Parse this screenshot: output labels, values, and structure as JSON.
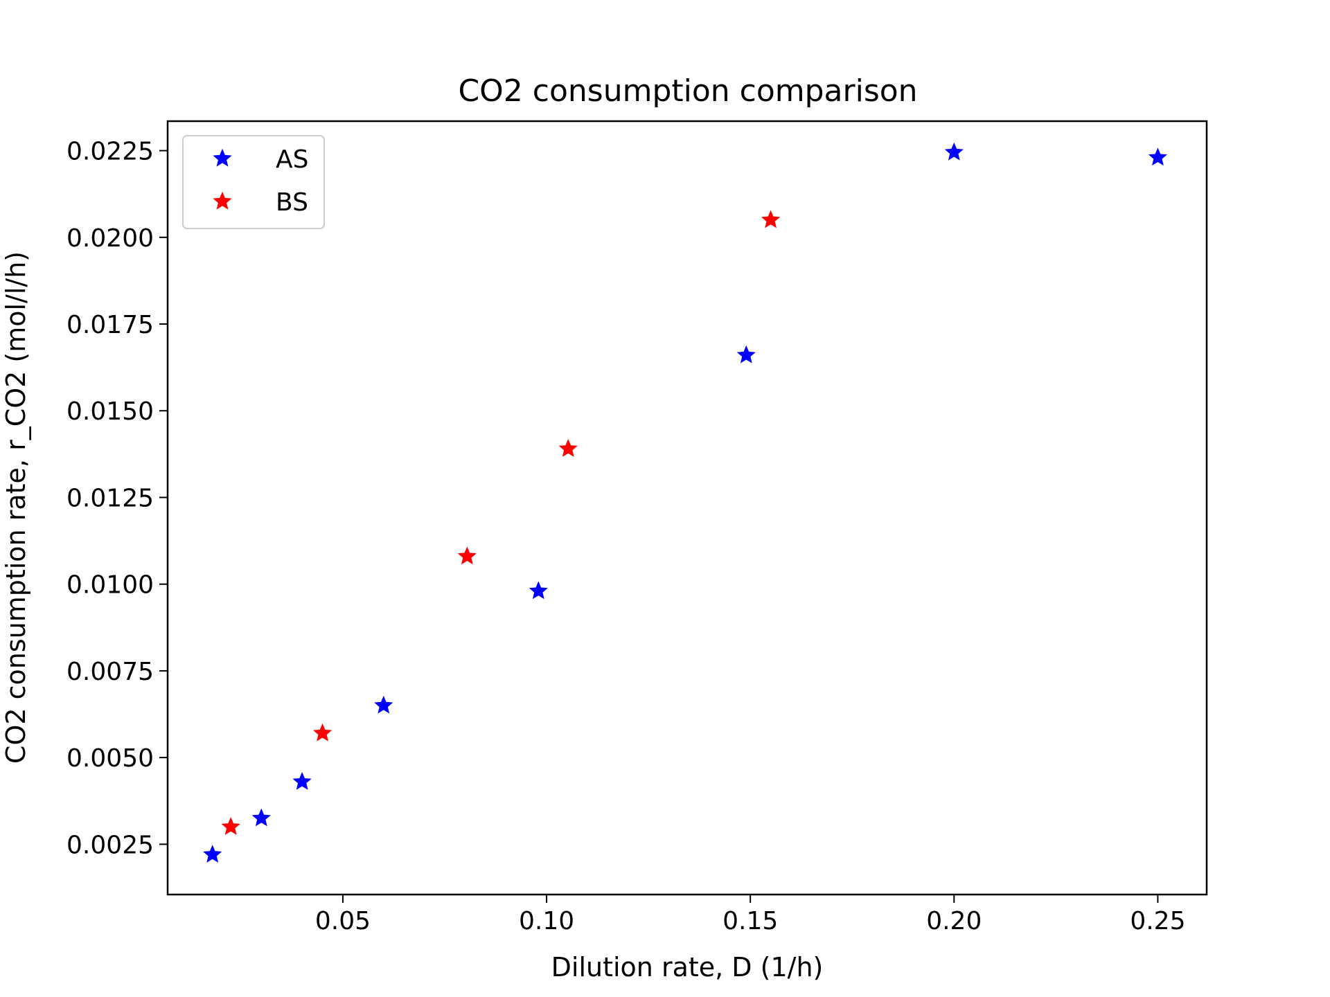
{
  "chart_data": {
    "type": "scatter",
    "title": "CO2 consumption comparison",
    "xlabel": "Dilution rate, D (1/h)",
    "ylabel": "CO2 consumption rate, r_CO2 (mol/l/h)",
    "xlim": [
      0.007,
      0.262
    ],
    "ylim": [
      0.00105,
      0.02335
    ],
    "xticks": [
      0.05,
      0.1,
      0.15,
      0.2,
      0.25
    ],
    "xtick_labels": [
      "0.05",
      "0.10",
      "0.15",
      "0.20",
      "0.25"
    ],
    "yticks": [
      0.0025,
      0.005,
      0.0075,
      0.01,
      0.0125,
      0.015,
      0.0175,
      0.02,
      0.0225
    ],
    "ytick_labels": [
      "0.0025",
      "0.0050",
      "0.0075",
      "0.0100",
      "0.0125",
      "0.0150",
      "0.0175",
      "0.0200",
      "0.0225"
    ],
    "grid": false,
    "legend_position": "top-left",
    "marker": "star",
    "series": [
      {
        "name": "AS",
        "color": "#0000ff",
        "x": [
          0.018,
          0.03,
          0.04,
          0.06,
          0.098,
          0.149,
          0.2,
          0.25
        ],
        "y": [
          0.0022,
          0.00325,
          0.0043,
          0.0065,
          0.0098,
          0.0166,
          0.02245,
          0.0223
        ]
      },
      {
        "name": "BS",
        "color": "#ff0000",
        "x": [
          0.0225,
          0.045,
          0.0805,
          0.1053,
          0.155
        ],
        "y": [
          0.003,
          0.0057,
          0.0108,
          0.0139,
          0.0205
        ]
      }
    ]
  }
}
